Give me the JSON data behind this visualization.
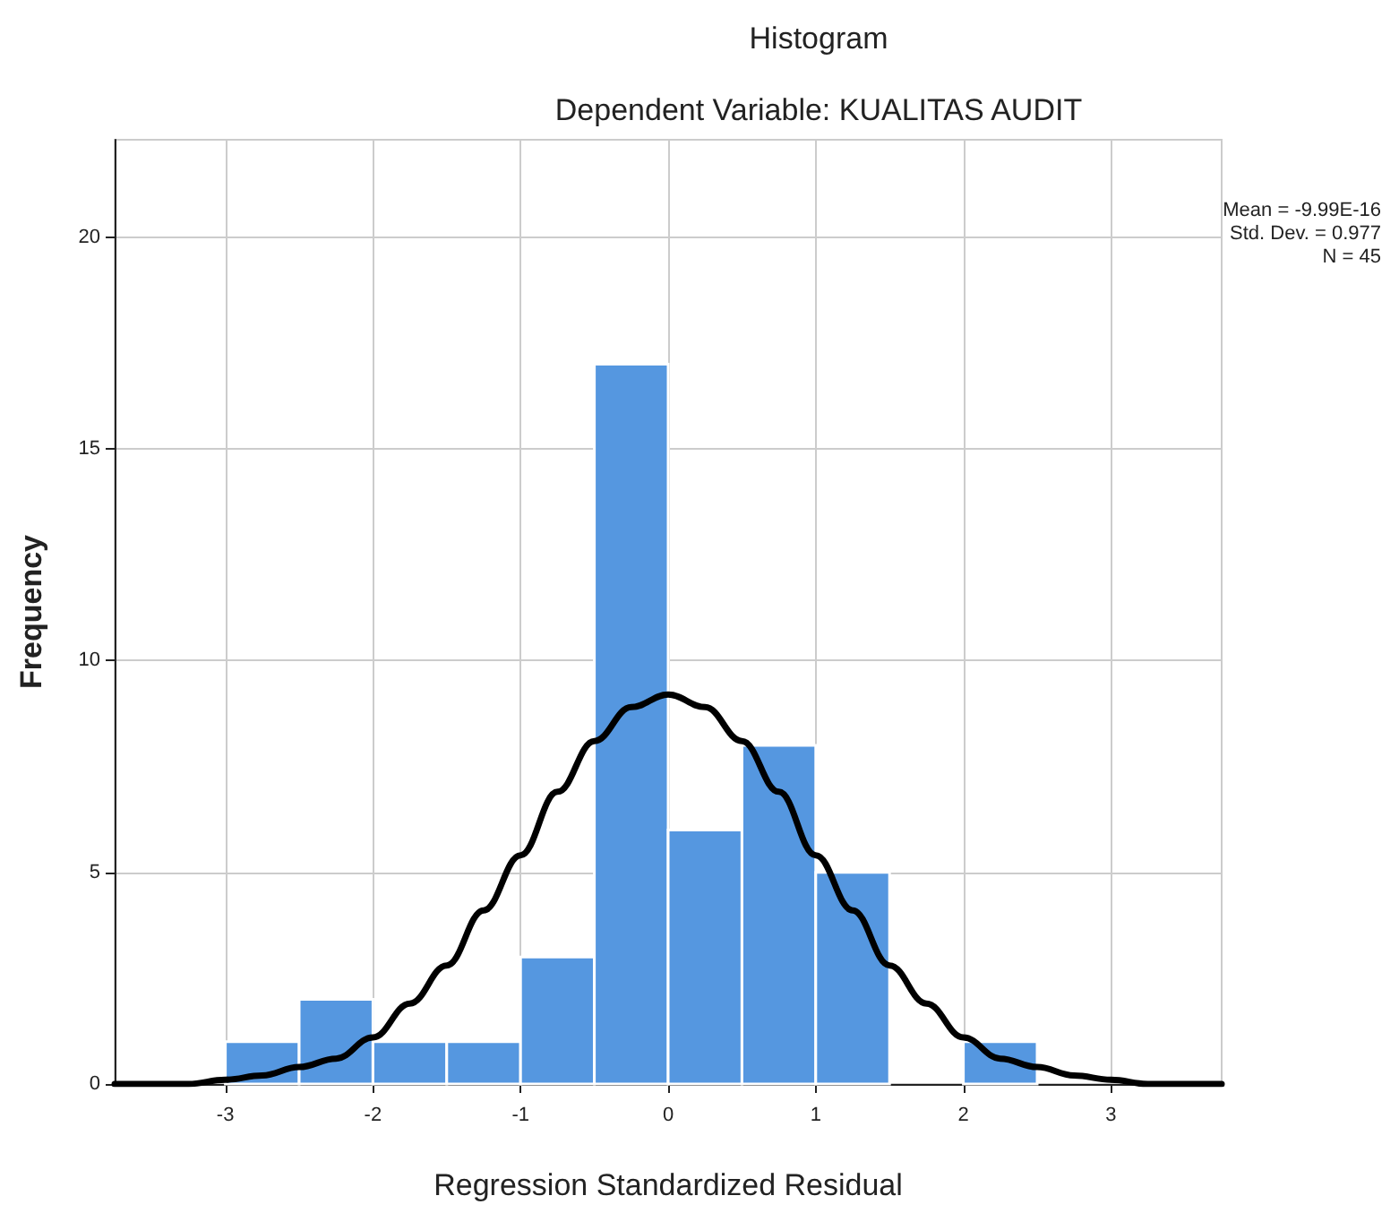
{
  "chart_data": {
    "type": "histogram",
    "title": "Histogram",
    "subtitle": "Dependent Variable: KUALITAS AUDIT",
    "xlabel": "Regression Standardized Residual",
    "ylabel": "Frequency",
    "annotations": [
      "Mean = -9.99E-16",
      "Std. Dev. = 0.977",
      "N = 45"
    ],
    "bins": [
      -3,
      -2.5,
      -2,
      -1.5,
      -1,
      -0.5,
      0,
      0.5,
      1,
      1.5,
      2,
      2.5
    ],
    "values": [
      1,
      2,
      1,
      1,
      3,
      17,
      6,
      8,
      5,
      0,
      1
    ],
    "color": "#5597e0",
    "series": [
      {
        "type": "line",
        "color": "#000000",
        "marker": "none",
        "line_style": "solid",
        "x": [
          -3.75,
          -3.5,
          -3.25,
          -3,
          -2.75,
          -2.5,
          -2.25,
          -2,
          -1.75,
          -1.5,
          -1.25,
          -1,
          -0.75,
          -0.5,
          -0.25,
          0,
          0.25,
          0.5,
          0.75,
          1,
          1.25,
          1.5,
          1.75,
          2,
          2.25,
          2.5,
          2.75,
          3,
          3.25,
          3.5,
          3.75
        ],
        "values": [
          0,
          0,
          0,
          0.1,
          0.2,
          0.4,
          0.6,
          1.1,
          1.9,
          2.8,
          4.1,
          5.4,
          6.9,
          8.1,
          8.9,
          9.2,
          8.9,
          8.1,
          6.9,
          5.4,
          4.1,
          2.8,
          1.9,
          1.1,
          0.6,
          0.4,
          0.2,
          0.1,
          0,
          0,
          0
        ]
      }
    ],
    "xlim": [
      -3.75,
      3.75
    ],
    "xticks": [
      -3,
      -2,
      -1,
      0,
      1,
      2,
      3
    ],
    "ylim": [
      0,
      22.3
    ],
    "yticks": [
      0,
      5,
      10,
      15,
      20
    ],
    "grid": true
  }
}
